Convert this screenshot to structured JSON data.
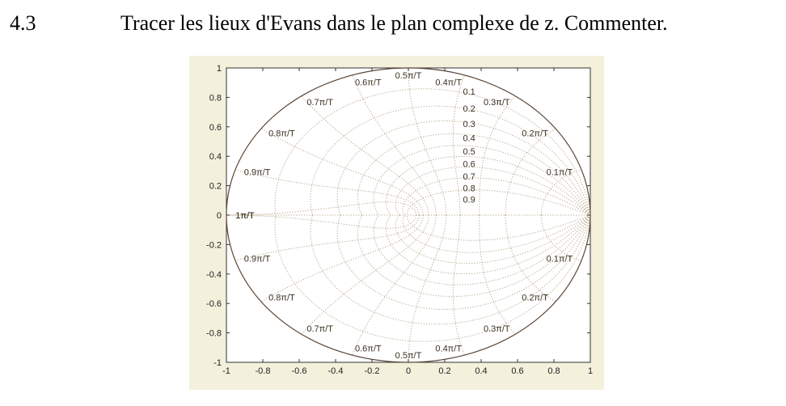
{
  "question": {
    "number": "4.3",
    "text": "Tracer les lieux d'Evans dans le plan complexe de z. Commenter."
  },
  "colors": {
    "figure_background": "#f3f0dc",
    "axes_background": "#ffffff",
    "unit_circle": "#5a4535",
    "grid": "#b8a68a",
    "text": "#222222"
  },
  "chart_data": {
    "type": "zgrid",
    "title": "",
    "xlabel": "",
    "ylabel": "",
    "xlim": [
      -1,
      1
    ],
    "ylim": [
      -1,
      1
    ],
    "x_ticks": [
      "-1",
      "-0.8",
      "-0.6",
      "-0.4",
      "-0.2",
      "0",
      "0.2",
      "0.4",
      "0.6",
      "0.8",
      "1"
    ],
    "x_tick_values": [
      -1,
      -0.8,
      -0.6,
      -0.4,
      -0.2,
      0,
      0.2,
      0.4,
      0.6,
      0.8,
      1
    ],
    "y_ticks": [
      "1",
      "0.8",
      "0.6",
      "0.4",
      "0.2",
      "0",
      "-0.2",
      "-0.4",
      "-0.6",
      "-0.8",
      "-1"
    ],
    "y_tick_values": [
      1,
      0.8,
      0.6,
      0.4,
      0.2,
      0,
      -0.2,
      -0.4,
      -0.6,
      -0.8,
      -1
    ],
    "damping_ratios": [
      0.1,
      0.2,
      0.3,
      0.4,
      0.5,
      0.6,
      0.7,
      0.8,
      0.9
    ],
    "damping_labels": [
      "0.1",
      "0.2",
      "0.3",
      "0.4",
      "0.5",
      "0.6",
      "0.7",
      "0.8",
      "0.9"
    ],
    "natural_frequencies": [
      0.1,
      0.2,
      0.3,
      0.4,
      0.5,
      0.6,
      0.7,
      0.8,
      0.9,
      1.0
    ],
    "frequency_labels_upper": [
      "0.1π/T",
      "0.2π/T",
      "0.3π/T",
      "0.4π/T",
      "0.5π/T",
      "0.6π/T",
      "0.7π/T",
      "0.8π/T",
      "0.9π/T",
      "1π/T"
    ],
    "frequency_labels_lower": [
      "0.1π/T",
      "0.2π/T",
      "0.3π/T",
      "0.4π/T",
      "0.5π/T",
      "0.6π/T",
      "0.7π/T",
      "0.8π/T",
      "0.9π/T",
      "1π/T"
    ],
    "unit_circle": true,
    "grid": true
  }
}
